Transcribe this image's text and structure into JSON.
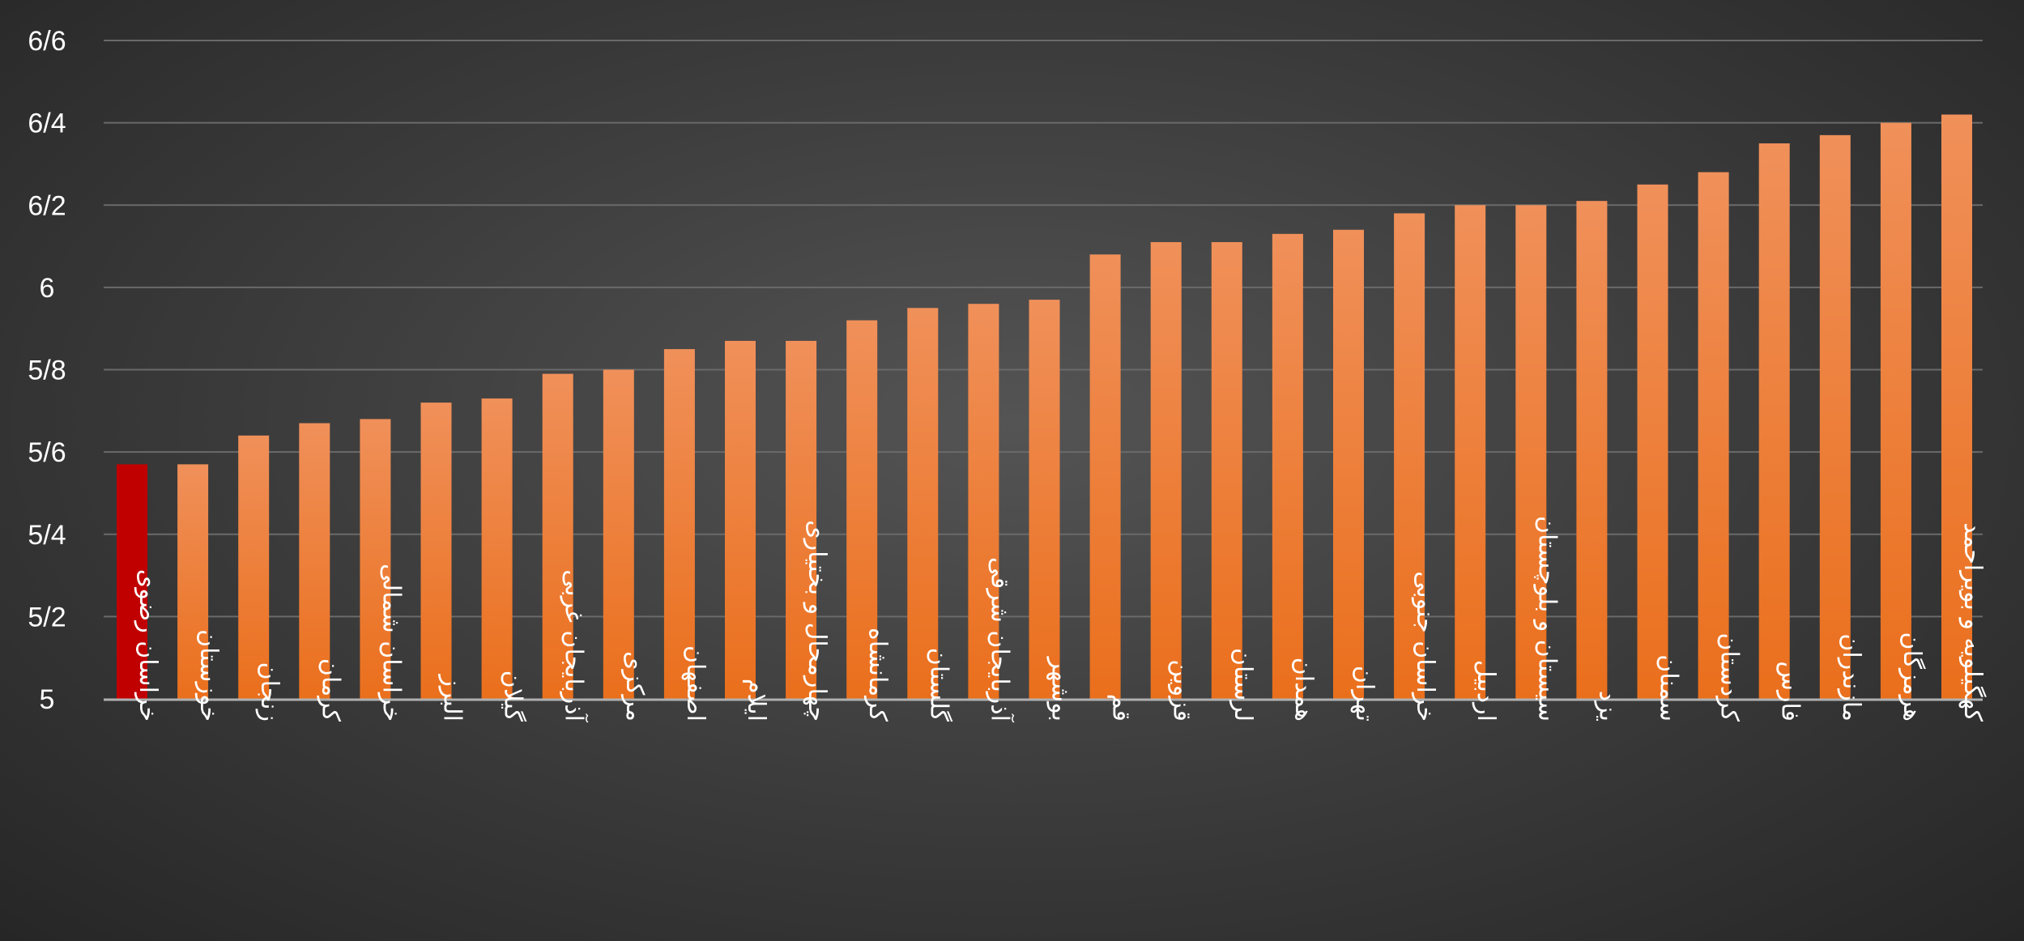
{
  "chart_data": {
    "type": "bar",
    "title": "",
    "xlabel": "",
    "ylabel": "",
    "ylim": [
      5,
      6.6
    ],
    "y_ticks": [
      {
        "value": 5.0,
        "label": "5"
      },
      {
        "value": 5.2,
        "label": "5/2"
      },
      {
        "value": 5.4,
        "label": "5/4"
      },
      {
        "value": 5.6,
        "label": "5/6"
      },
      {
        "value": 5.8,
        "label": "5/8"
      },
      {
        "value": 6.0,
        "label": "6"
      },
      {
        "value": 6.2,
        "label": "6/2"
      },
      {
        "value": 6.4,
        "label": "6/4"
      },
      {
        "value": 6.6,
        "label": "6/6"
      }
    ],
    "grid": true,
    "legend": "none",
    "categories": [
      "خراسان رضوی",
      "خوزستان",
      "زنجان",
      "کرمان",
      "خراسان شمالی",
      "البرز",
      "گیلان",
      "آذربایجان غربی",
      "مرکزی",
      "اصفهان",
      "ایلام",
      "چهارمحال و بختیاری",
      "کرمانشاه",
      "گلستان",
      "آذربایجان شرقی",
      "بوشهر",
      "قم",
      "قزوین",
      "لرستان",
      "همدان",
      "تهران",
      "خراسان جنوبی",
      "اردبیل",
      "سیستان و بلوچستان",
      "یزد",
      "سمنان",
      "کردستان",
      "فارس",
      "مازندران",
      "هرمزگان",
      "کهگیلویه و بویراحمد"
    ],
    "values": [
      5.57,
      5.57,
      5.64,
      5.67,
      5.68,
      5.72,
      5.73,
      5.79,
      5.8,
      5.85,
      5.87,
      5.87,
      5.92,
      5.95,
      5.96,
      5.97,
      6.08,
      6.11,
      6.11,
      6.13,
      6.14,
      6.18,
      6.2,
      6.2,
      6.21,
      6.25,
      6.28,
      6.35,
      6.37,
      6.4,
      6.42
    ],
    "highlight_index": 0,
    "colors": {
      "bar": "#f47c2b",
      "bar_top": "#f0905a",
      "bar_bottom": "#ea6f1c",
      "highlight": "#c00000",
      "grid": "#6a6a6a",
      "axis": "#b0b0b0",
      "text": "#ffffff"
    }
  }
}
